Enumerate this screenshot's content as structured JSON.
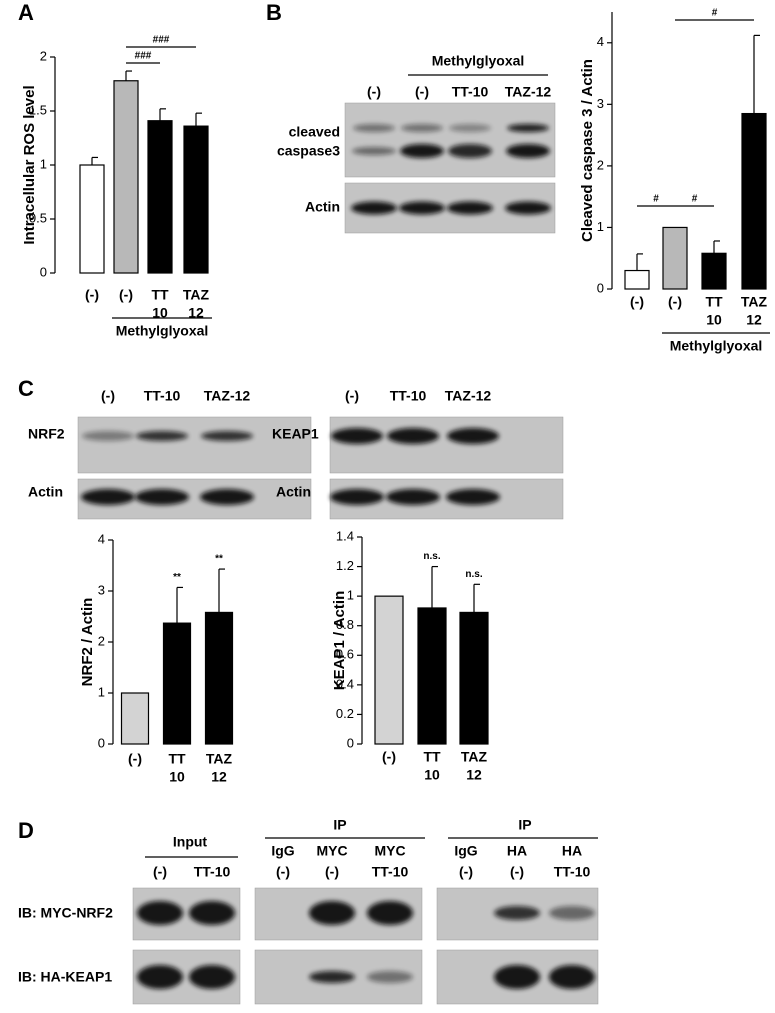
{
  "panel_labels": [
    "A",
    "B",
    "C",
    "D"
  ],
  "chart_data": [
    {
      "type": "bar",
      "y_label": "Intracellular ROS level",
      "categories": [
        [
          "(-)"
        ],
        [
          "(-)"
        ],
        [
          "TT",
          "10"
        ],
        [
          "TAZ",
          "12"
        ]
      ],
      "values": [
        1.0,
        1.78,
        1.41,
        1.36
      ],
      "errors": [
        0.07,
        0.09,
        0.11,
        0.12
      ],
      "colors": [
        "#ffffff",
        "#b8b8b8",
        "#000000",
        "#000000"
      ],
      "ylim": [
        0,
        2
      ],
      "yticks": [
        0,
        0.5,
        1,
        1.5,
        2
      ],
      "group_label": "Methylglyoxal",
      "annotations": [
        "###",
        "###"
      ]
    },
    {
      "type": "bar",
      "y_label": "Cleaved caspase 3 / Actin",
      "categories": [
        [
          "(-)"
        ],
        [
          "(-)"
        ],
        [
          "TT",
          "10"
        ],
        [
          "TAZ",
          "12"
        ]
      ],
      "values": [
        0.3,
        1.0,
        0.58,
        2.85
      ],
      "errors": [
        0.27,
        null,
        0.2,
        1.27
      ],
      "colors": [
        "#ffffff",
        "#b8b8b8",
        "#000000",
        "#000000"
      ],
      "ylim": [
        0,
        4.5
      ],
      "yticks": [
        0,
        1,
        2,
        3,
        4
      ],
      "group_label": "Methylglyoxal",
      "annotations": [
        "#",
        "#",
        "#"
      ]
    },
    {
      "type": "bar",
      "y_label": "NRF2 / Actin",
      "categories": [
        [
          "(-)"
        ],
        [
          "TT",
          "10"
        ],
        [
          "TAZ",
          "12"
        ]
      ],
      "values": [
        1.0,
        2.37,
        2.58
      ],
      "errors": [
        null,
        0.7,
        0.85
      ],
      "colors": [
        "#d3d3d3",
        "#000000",
        "#000000"
      ],
      "ylim": [
        0,
        4
      ],
      "yticks": [
        0,
        1,
        2,
        3,
        4
      ],
      "annotations": [
        "**",
        "**"
      ]
    },
    {
      "type": "bar",
      "y_label": "KEAP1 / Actin",
      "categories": [
        [
          "(-)"
        ],
        [
          "TT",
          "10"
        ],
        [
          "TAZ",
          "12"
        ]
      ],
      "values": [
        1.0,
        0.92,
        0.89
      ],
      "errors": [
        null,
        0.28,
        0.19
      ],
      "colors": [
        "#d3d3d3",
        "#000000",
        "#000000"
      ],
      "ylim": [
        0,
        1.4
      ],
      "yticks": [
        0,
        0.2,
        0.4,
        0.6,
        0.8,
        1,
        1.2,
        1.4
      ],
      "annotations": [
        "n.s.",
        "n.s."
      ]
    }
  ],
  "blot_b": {
    "group_label": "Methylglyoxal",
    "lanes": [
      "(-)",
      "(-)",
      "TT-10",
      "TAZ-12"
    ],
    "rows": [
      [
        "cleaved",
        "caspase3"
      ],
      [
        "Actin"
      ]
    ]
  },
  "blot_c": [
    {
      "lanes": [
        "(-)",
        "TT-10",
        "TAZ-12"
      ],
      "rows": [
        "NRF2",
        "Actin"
      ]
    },
    {
      "lanes": [
        "(-)",
        "TT-10",
        "TAZ-12"
      ],
      "rows": [
        "KEAP1",
        "Actin"
      ]
    }
  ],
  "blot_d": {
    "row_labels": [
      "IB: MYC-NRF2",
      "IB: HA-KEAP1"
    ],
    "groups": [
      {
        "title": "Input",
        "lanes": [
          [
            "(-)"
          ],
          [
            "TT-10"
          ]
        ]
      },
      {
        "title": "IP",
        "lanes": [
          [
            "IgG",
            "(-)"
          ],
          [
            "MYC",
            "(-)"
          ],
          [
            "MYC",
            "TT-10"
          ]
        ]
      },
      {
        "title": "IP",
        "lanes": [
          [
            "IgG",
            "(-)"
          ],
          [
            "HA",
            "(-)"
          ],
          [
            "HA",
            "TT-10"
          ]
        ]
      }
    ]
  }
}
